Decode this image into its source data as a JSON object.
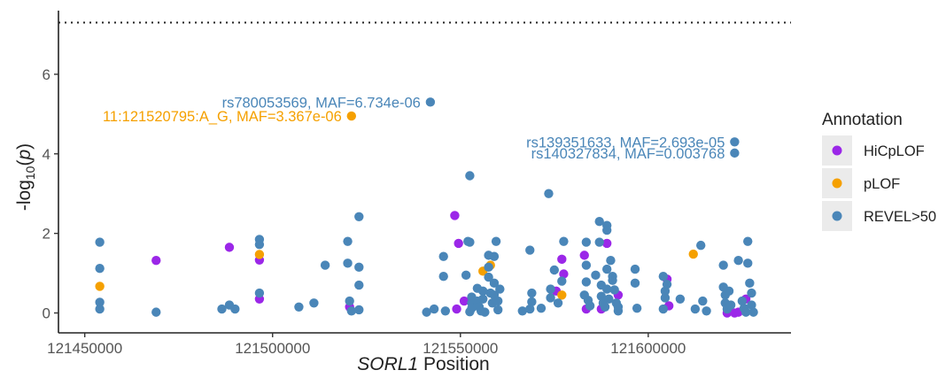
{
  "chart_data": {
    "type": "scatter",
    "title": "",
    "xlabel_italic": "SORL1",
    "xlabel_rest": " Position",
    "ylabel_main": "-log",
    "ylabel_sub": "10",
    "ylabel_paren": "(",
    "ylabel_p": "p",
    "ylabel_close": ")",
    "xlim": [
      121443000,
      121638000
    ],
    "ylim": [
      -0.5,
      7.6
    ],
    "x_ticks": [
      121450000,
      121500000,
      121550000,
      121600000
    ],
    "x_tick_labels": [
      "121450000",
      "121500000",
      "121550000",
      "121600000"
    ],
    "y_ticks": [
      0,
      2,
      4,
      6
    ],
    "y_tick_labels": [
      "0",
      "2",
      "4",
      "6"
    ],
    "threshold": 7.3,
    "grid": false,
    "legend_position": "right",
    "legend_title": "Annotation",
    "series": [
      {
        "name": "HiCpLOF",
        "color": "#9b27e8",
        "points": [
          [
            121469000,
            1.32
          ],
          [
            121488500,
            1.65
          ],
          [
            121496500,
            1.33
          ],
          [
            121496500,
            0.35
          ],
          [
            121520500,
            0.15
          ],
          [
            121548500,
            2.45
          ],
          [
            121549500,
            1.75
          ],
          [
            121549000,
            0.1
          ],
          [
            121551000,
            0.3
          ],
          [
            121577000,
            1.35
          ],
          [
            121577500,
            0.98
          ],
          [
            121575500,
            0.55
          ],
          [
            121583000,
            1.45
          ],
          [
            121583500,
            0.1
          ],
          [
            121587500,
            0.1
          ],
          [
            121589000,
            1.75
          ],
          [
            121592000,
            0.45
          ],
          [
            121605000,
            0.85
          ],
          [
            121605500,
            0.18
          ],
          [
            121621000,
            0.0
          ],
          [
            121623000,
            0.0
          ],
          [
            121624000,
            0.02
          ],
          [
            121626000,
            0.35
          ]
        ]
      },
      {
        "name": "pLOF",
        "color": "#f5a000",
        "points": [
          [
            121454000,
            0.67
          ],
          [
            121496500,
            1.47
          ],
          [
            121521000,
            4.95
          ],
          [
            121556000,
            1.05
          ],
          [
            121558000,
            1.2
          ],
          [
            121577000,
            0.45
          ],
          [
            121612000,
            1.48
          ]
        ]
      },
      {
        "name": "REVEL>50",
        "color": "#4a86b8",
        "points": [
          [
            121454000,
            1.78
          ],
          [
            121454000,
            1.12
          ],
          [
            121454000,
            0.27
          ],
          [
            121454000,
            0.1
          ],
          [
            121469000,
            0.02
          ],
          [
            121486500,
            0.1
          ],
          [
            121488500,
            0.2
          ],
          [
            121490000,
            0.1
          ],
          [
            121496500,
            1.85
          ],
          [
            121496500,
            1.72
          ],
          [
            121496500,
            0.5
          ],
          [
            121507000,
            0.15
          ],
          [
            121511000,
            0.25
          ],
          [
            121514000,
            1.2
          ],
          [
            121520000,
            1.8
          ],
          [
            121520000,
            1.25
          ],
          [
            121520500,
            0.3
          ],
          [
            121521000,
            0.05
          ],
          [
            121523000,
            2.42
          ],
          [
            121523000,
            1.15
          ],
          [
            121523000,
            0.7
          ],
          [
            121523000,
            0.08
          ],
          [
            121542000,
            5.3
          ],
          [
            121543000,
            0.1
          ],
          [
            121541000,
            0.02
          ],
          [
            121545500,
            1.42
          ],
          [
            121545500,
            0.92
          ],
          [
            121546000,
            0.05
          ],
          [
            121552500,
            3.45
          ],
          [
            121552000,
            1.8
          ],
          [
            121552500,
            1.78
          ],
          [
            121551500,
            0.95
          ],
          [
            121553000,
            0.4
          ],
          [
            121553000,
            0.25
          ],
          [
            121553000,
            0.12
          ],
          [
            121552500,
            0.03
          ],
          [
            121554500,
            0.62
          ],
          [
            121554500,
            0.3
          ],
          [
            121555000,
            0.15
          ],
          [
            121555500,
            0.05
          ],
          [
            121556000,
            0.55
          ],
          [
            121556000,
            0.35
          ],
          [
            121556500,
            0.02
          ],
          [
            121557500,
            1.45
          ],
          [
            121557500,
            1.15
          ],
          [
            121557500,
            0.9
          ],
          [
            121558000,
            0.5
          ],
          [
            121558500,
            0.25
          ],
          [
            121559500,
            1.8
          ],
          [
            121559000,
            1.42
          ],
          [
            121559000,
            0.75
          ],
          [
            121559000,
            0.45
          ],
          [
            121560000,
            0.3
          ],
          [
            121560000,
            0.08
          ],
          [
            121560500,
            0.6
          ],
          [
            121566500,
            0.05
          ],
          [
            121568500,
            1.58
          ],
          [
            121569000,
            0.28
          ],
          [
            121569000,
            0.5
          ],
          [
            121568500,
            0.1
          ],
          [
            121571500,
            0.12
          ],
          [
            121573500,
            3.0
          ],
          [
            121574000,
            0.6
          ],
          [
            121574000,
            0.38
          ],
          [
            121575000,
            1.08
          ],
          [
            121576000,
            0.25
          ],
          [
            121577500,
            1.8
          ],
          [
            121577000,
            0.8
          ],
          [
            121583500,
            1.78
          ],
          [
            121583500,
            0.78
          ],
          [
            121583000,
            0.45
          ],
          [
            121584000,
            0.32
          ],
          [
            121584500,
            0.18
          ],
          [
            121583500,
            1.2
          ],
          [
            121586000,
            0.95
          ],
          [
            121587000,
            2.3
          ],
          [
            121587000,
            1.78
          ],
          [
            121587500,
            0.7
          ],
          [
            121587500,
            0.42
          ],
          [
            121588000,
            0.25
          ],
          [
            121588500,
            0.15
          ],
          [
            121589000,
            2.2
          ],
          [
            121589000,
            2.08
          ],
          [
            121589000,
            1.1
          ],
          [
            121589000,
            0.6
          ],
          [
            121589500,
            0.35
          ],
          [
            121590000,
            1.32
          ],
          [
            121590500,
            0.92
          ],
          [
            121590500,
            0.82
          ],
          [
            121591000,
            0.58
          ],
          [
            121591500,
            0.25
          ],
          [
            121592000,
            0.15
          ],
          [
            121592000,
            0.05
          ],
          [
            121596500,
            1.1
          ],
          [
            121596500,
            0.75
          ],
          [
            121597000,
            0.12
          ],
          [
            121604000,
            0.92
          ],
          [
            121604500,
            0.55
          ],
          [
            121604500,
            0.38
          ],
          [
            121604000,
            0.1
          ],
          [
            121605000,
            0.72
          ],
          [
            121608500,
            0.35
          ],
          [
            121612500,
            0.1
          ],
          [
            121614000,
            1.7
          ],
          [
            121614500,
            0.3
          ],
          [
            121615500,
            0.05
          ],
          [
            121620000,
            1.2
          ],
          [
            121620000,
            0.65
          ],
          [
            121620500,
            0.45
          ],
          [
            121620500,
            0.25
          ],
          [
            121621000,
            0.1
          ],
          [
            121621500,
            0.55
          ],
          [
            121622000,
            0.2
          ],
          [
            121623000,
            4.3
          ],
          [
            121623000,
            4.02
          ],
          [
            121624000,
            1.32
          ],
          [
            121625000,
            0.3
          ],
          [
            121625500,
            0.12
          ],
          [
            121626000,
            0.02
          ],
          [
            121626500,
            1.8
          ],
          [
            121626500,
            1.25
          ],
          [
            121627000,
            0.75
          ],
          [
            121627500,
            0.5
          ],
          [
            121627500,
            0.2
          ],
          [
            121628000,
            0.02
          ]
        ]
      }
    ],
    "annotations": [
      {
        "text": "rs780053569, MAF=6.734e-06",
        "x": 121542000,
        "y": 5.3,
        "color": "#4a86b8"
      },
      {
        "text": "11:121520795:A_G, MAF=3.367e-06",
        "x": 121521000,
        "y": 4.95,
        "color": "#f5a000"
      },
      {
        "text": "rs139351633, MAF=2.693e-05",
        "x": 121623000,
        "y": 4.3,
        "color": "#4a86b8"
      },
      {
        "text": "rs140327834, MAF=0.003768",
        "x": 121623000,
        "y": 4.02,
        "color": "#4a86b8"
      }
    ]
  }
}
